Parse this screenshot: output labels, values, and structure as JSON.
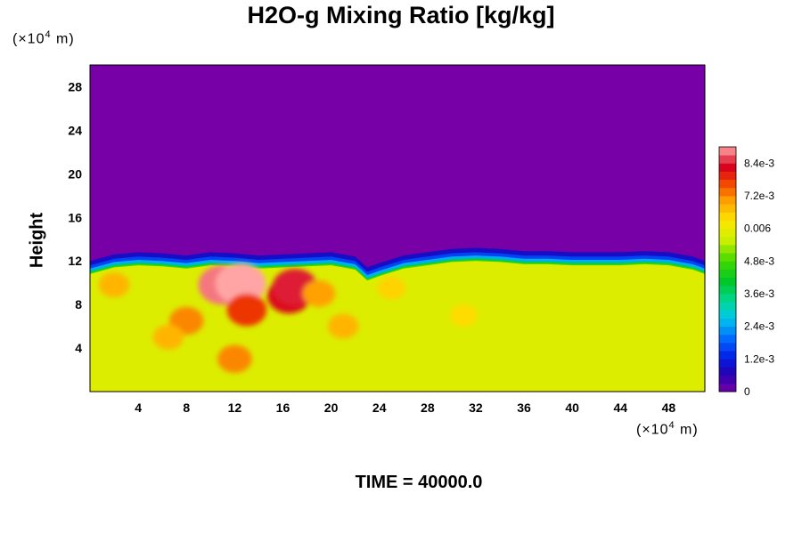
{
  "chart_data": {
    "type": "heatmap",
    "title": "H2O-g Mixing Ratio [kg/kg]",
    "ylabel": "Height",
    "xlabel": "",
    "x_unit_prefix": "(×10",
    "x_unit_exp": "4",
    "x_unit_suffix": " m)",
    "y_unit_prefix": "(×10",
    "y_unit_exp": "4",
    "y_unit_suffix": " m)",
    "xlim": [
      0,
      51
    ],
    "ylim": [
      0,
      30
    ],
    "x_ticks": [
      "4",
      "8",
      "12",
      "16",
      "20",
      "24",
      "28",
      "32",
      "36",
      "40",
      "44",
      "48"
    ],
    "y_ticks": [
      "4",
      "8",
      "12",
      "16",
      "20",
      "24",
      "28"
    ],
    "x_tick_values": [
      4,
      8,
      12,
      16,
      20,
      24,
      28,
      32,
      36,
      40,
      44,
      48
    ],
    "y_tick_values": [
      4,
      8,
      12,
      16,
      20,
      24,
      28
    ],
    "colorbar": {
      "min": 0,
      "max": 0.009,
      "tick_labels": [
        "0",
        "1.2e-3",
        "2.4e-3",
        "3.6e-3",
        "4.8e-3",
        "0.006",
        "7.2e-3",
        "8.4e-3"
      ],
      "tick_values": [
        0,
        0.0012,
        0.0024,
        0.0036,
        0.0048,
        0.006,
        0.0072,
        0.0084
      ]
    },
    "fields": {
      "upper_value": 0,
      "lower_value": 0.0058,
      "interface_height_profile": {
        "x": [
          0,
          2,
          4,
          6,
          8,
          10,
          12,
          14,
          16,
          18,
          20,
          22,
          23,
          24,
          26,
          28,
          30,
          32,
          34,
          36,
          38,
          40,
          42,
          44,
          46,
          48,
          50,
          51
        ],
        "y": [
          10.8,
          11.4,
          11.6,
          11.5,
          11.3,
          11.6,
          11.5,
          11.3,
          11.4,
          11.5,
          11.6,
          11.2,
          10.2,
          10.6,
          11.3,
          11.6,
          11.9,
          12.0,
          11.9,
          11.7,
          11.7,
          11.6,
          11.6,
          11.6,
          11.7,
          11.6,
          11.2,
          10.8
        ]
      },
      "moist_patches": [
        {
          "x": 11.0,
          "y": 9.8,
          "value": 0.0088
        },
        {
          "x": 12.5,
          "y": 9.9,
          "value": 0.009
        },
        {
          "x": 13.0,
          "y": 7.5,
          "value": 0.0078
        },
        {
          "x": 16.5,
          "y": 8.8,
          "value": 0.0082
        },
        {
          "x": 17.0,
          "y": 9.6,
          "value": 0.0084
        },
        {
          "x": 8.0,
          "y": 6.5,
          "value": 0.0072
        },
        {
          "x": 6.5,
          "y": 5.0,
          "value": 0.0068
        },
        {
          "x": 12.0,
          "y": 3.0,
          "value": 0.0072
        },
        {
          "x": 19.0,
          "y": 9.0,
          "value": 0.007
        },
        {
          "x": 21.0,
          "y": 6.0,
          "value": 0.0068
        },
        {
          "x": 2.0,
          "y": 9.8,
          "value": 0.0068
        },
        {
          "x": 25.0,
          "y": 9.5,
          "value": 0.0065
        },
        {
          "x": 31.0,
          "y": 7.0,
          "value": 0.0064
        }
      ]
    }
  },
  "footer": {
    "time_label": "TIME = 40000.0"
  }
}
